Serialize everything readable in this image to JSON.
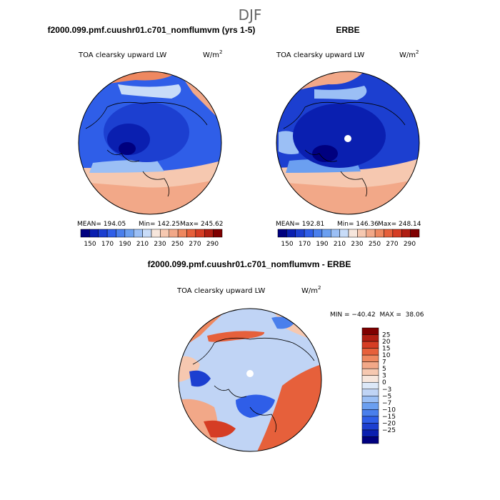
{
  "page_title": "DJF",
  "chart_data": [
    {
      "type": "heatmap",
      "title": "f2000.099.pmf.cuushr01.c701_nomflumvm (yrs 1-5)",
      "variable": "TOA clearsky upward LW",
      "units": "W/m",
      "units_exp": "2",
      "stats": {
        "mean_label": "MEAN= 194.05",
        "min_label": "Min= 142.25",
        "max_label": "Max= 245.62"
      },
      "colorbar": {
        "orientation": "horizontal",
        "colors": [
          "#00007f",
          "#0a1fb0",
          "#1c3fd0",
          "#2f5ee8",
          "#4a7fec",
          "#6b9ff0",
          "#9bbff5",
          "#c8dcf8",
          "#f7e6dc",
          "#f6c8b0",
          "#f2a888",
          "#ee8860",
          "#e6603b",
          "#d53d24",
          "#b01e12",
          "#7f0000"
        ],
        "tick_labels": [
          "150",
          "170",
          "190",
          "210",
          "230",
          "250",
          "270",
          "290"
        ]
      }
    },
    {
      "type": "heatmap",
      "title": "ERBE",
      "variable": "TOA clearsky upward LW",
      "units": "W/m",
      "units_exp": "2",
      "stats": {
        "mean_label": "MEAN= 192.81",
        "min_label": "Min= 146.36",
        "max_label": "Max= 248.14"
      },
      "colorbar": {
        "orientation": "horizontal",
        "colors": [
          "#00007f",
          "#0a1fb0",
          "#1c3fd0",
          "#2f5ee8",
          "#4a7fec",
          "#6b9ff0",
          "#9bbff5",
          "#c8dcf8",
          "#f7e6dc",
          "#f6c8b0",
          "#f2a888",
          "#ee8860",
          "#e6603b",
          "#d53d24",
          "#b01e12",
          "#7f0000"
        ],
        "tick_labels": [
          "150",
          "170",
          "190",
          "210",
          "230",
          "250",
          "270",
          "290"
        ]
      }
    },
    {
      "type": "heatmap",
      "title": "f2000.099.pmf.cuushr01.c701_nomflumvm - ERBE",
      "variable": "TOA clearsky upward LW",
      "units": "W/m",
      "units_exp": "2",
      "stats": {
        "minmax_label": "MIN = −40.42  MAX =  38.06"
      },
      "colorbar": {
        "orientation": "vertical",
        "colors": [
          "#7f0000",
          "#b01e12",
          "#d53d24",
          "#e6603b",
          "#ee8860",
          "#f2a888",
          "#f6c8b0",
          "#f7e6dc",
          "#dce8f8",
          "#c0d4f5",
          "#9bbff5",
          "#6b9ff0",
          "#4a7fec",
          "#2f5ee8",
          "#1c3fd0",
          "#0a1fb0",
          "#00007f"
        ],
        "tick_labels": [
          "25",
          "20",
          "15",
          "10",
          "7",
          "5",
          "3",
          "0",
          "−3",
          "−5",
          "−7",
          "−10",
          "−15",
          "−20",
          "−25"
        ]
      }
    }
  ]
}
